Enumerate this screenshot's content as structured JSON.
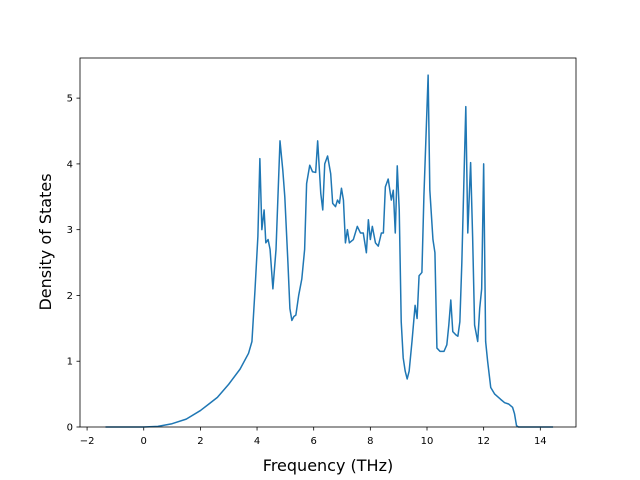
{
  "chart_data": {
    "type": "line",
    "x_label": "Frequency (THz)",
    "y_label": "Density of States",
    "xlim": [
      -2.25,
      15.26
    ],
    "ylim": [
      0,
      5.61
    ],
    "xticks": [
      {
        "value": -2,
        "label": "−2"
      },
      0,
      2,
      4,
      6,
      8,
      10,
      12,
      14
    ],
    "yticks": [
      0,
      1,
      2,
      3,
      4,
      5
    ],
    "series": [
      {
        "color": "#1f77b4",
        "x": [
          -1.35,
          0,
          0.5,
          1,
          1.5,
          2,
          2.3,
          2.6,
          3,
          3.4,
          3.7,
          3.82,
          3.93,
          4.03,
          4.1,
          4.17,
          4.25,
          4.31,
          4.39,
          4.46,
          4.56,
          4.67,
          4.81,
          4.91,
          4.98,
          5.09,
          5.16,
          5.23,
          5.3,
          5.37,
          5.47,
          5.58,
          5.68,
          5.75,
          5.86,
          5.96,
          6.07,
          6.14,
          6.25,
          6.32,
          6.39,
          6.49,
          6.6,
          6.67,
          6.77,
          6.84,
          6.91,
          6.98,
          7.05,
          7.12,
          7.19,
          7.26,
          7.4,
          7.54,
          7.65,
          7.75,
          7.86,
          7.93,
          8.0,
          8.07,
          8.18,
          8.28,
          8.39,
          8.46,
          8.53,
          8.63,
          8.74,
          8.81,
          8.88,
          8.95,
          9.02,
          9.09,
          9.16,
          9.23,
          9.3,
          9.37,
          9.47,
          9.58,
          9.65,
          9.72,
          9.82,
          9.89,
          10.04,
          10.1,
          10.21,
          10.28,
          10.35,
          10.46,
          10.6,
          10.7,
          10.77,
          10.84,
          10.91,
          11.02,
          11.09,
          11.16,
          11.23,
          11.3,
          11.37,
          11.44,
          11.54,
          11.61,
          11.68,
          11.79,
          11.86,
          11.93,
          12.0,
          12.07,
          12.14,
          12.25,
          12.39,
          12.6,
          12.74,
          12.88,
          13.02,
          13.09,
          13.16,
          13.23,
          14.45
        ],
        "values": [
          0,
          0,
          0.01,
          0.05,
          0.12,
          0.25,
          0.35,
          0.45,
          0.65,
          0.88,
          1.12,
          1.3,
          2.1,
          2.9,
          4.08,
          3.0,
          3.3,
          2.8,
          2.85,
          2.7,
          2.1,
          2.7,
          4.35,
          3.9,
          3.5,
          2.5,
          1.8,
          1.62,
          1.68,
          1.7,
          2.0,
          2.25,
          2.7,
          3.7,
          3.98,
          3.88,
          3.87,
          4.35,
          3.55,
          3.3,
          4.0,
          4.12,
          3.85,
          3.4,
          3.35,
          3.45,
          3.4,
          3.63,
          3.45,
          2.8,
          3.0,
          2.8,
          2.85,
          3.05,
          2.95,
          2.95,
          2.65,
          3.15,
          2.85,
          3.05,
          2.8,
          2.75,
          2.95,
          2.95,
          3.65,
          3.77,
          3.45,
          3.6,
          2.95,
          3.97,
          3.3,
          1.6,
          1.05,
          0.85,
          0.73,
          0.85,
          1.3,
          1.85,
          1.65,
          2.3,
          2.35,
          3.5,
          5.35,
          3.6,
          2.85,
          2.65,
          1.2,
          1.15,
          1.15,
          1.25,
          1.55,
          1.93,
          1.45,
          1.4,
          1.38,
          1.6,
          2.5,
          3.7,
          4.87,
          2.95,
          4.02,
          2.9,
          1.55,
          1.3,
          1.8,
          2.1,
          4.0,
          1.3,
          1.0,
          0.6,
          0.5,
          0.42,
          0.37,
          0.35,
          0.3,
          0.2,
          0.02,
          0,
          0
        ]
      }
    ]
  }
}
